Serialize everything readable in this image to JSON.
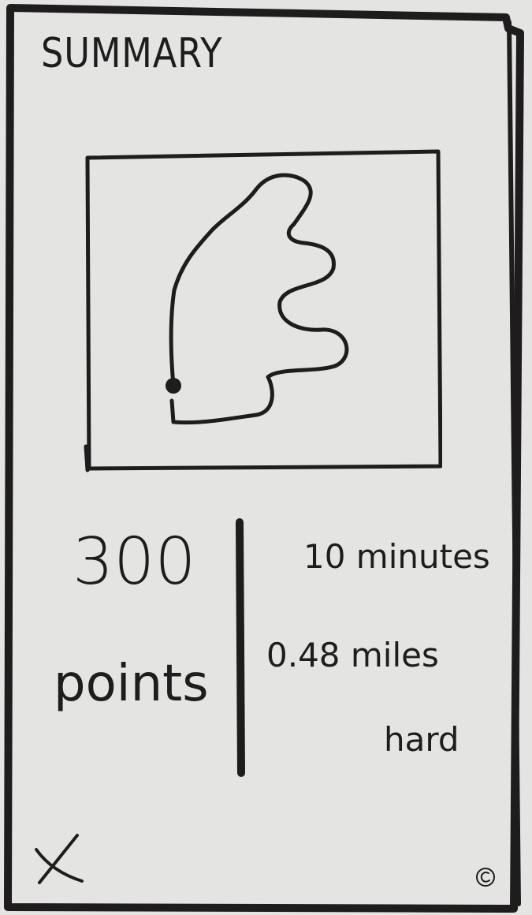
{
  "screen": {
    "title": "SUMMARY"
  },
  "route_map": {
    "start_marker_icon": "dot-icon"
  },
  "score": {
    "value": "300",
    "unit": "points"
  },
  "stats": {
    "duration": "10 minutes",
    "distance": "0.48 miles",
    "difficulty": "hard"
  },
  "actions": {
    "close_icon": "close-icon"
  },
  "colors": {
    "paper": "#e4e4e2",
    "ink": "#1f1c1d"
  }
}
